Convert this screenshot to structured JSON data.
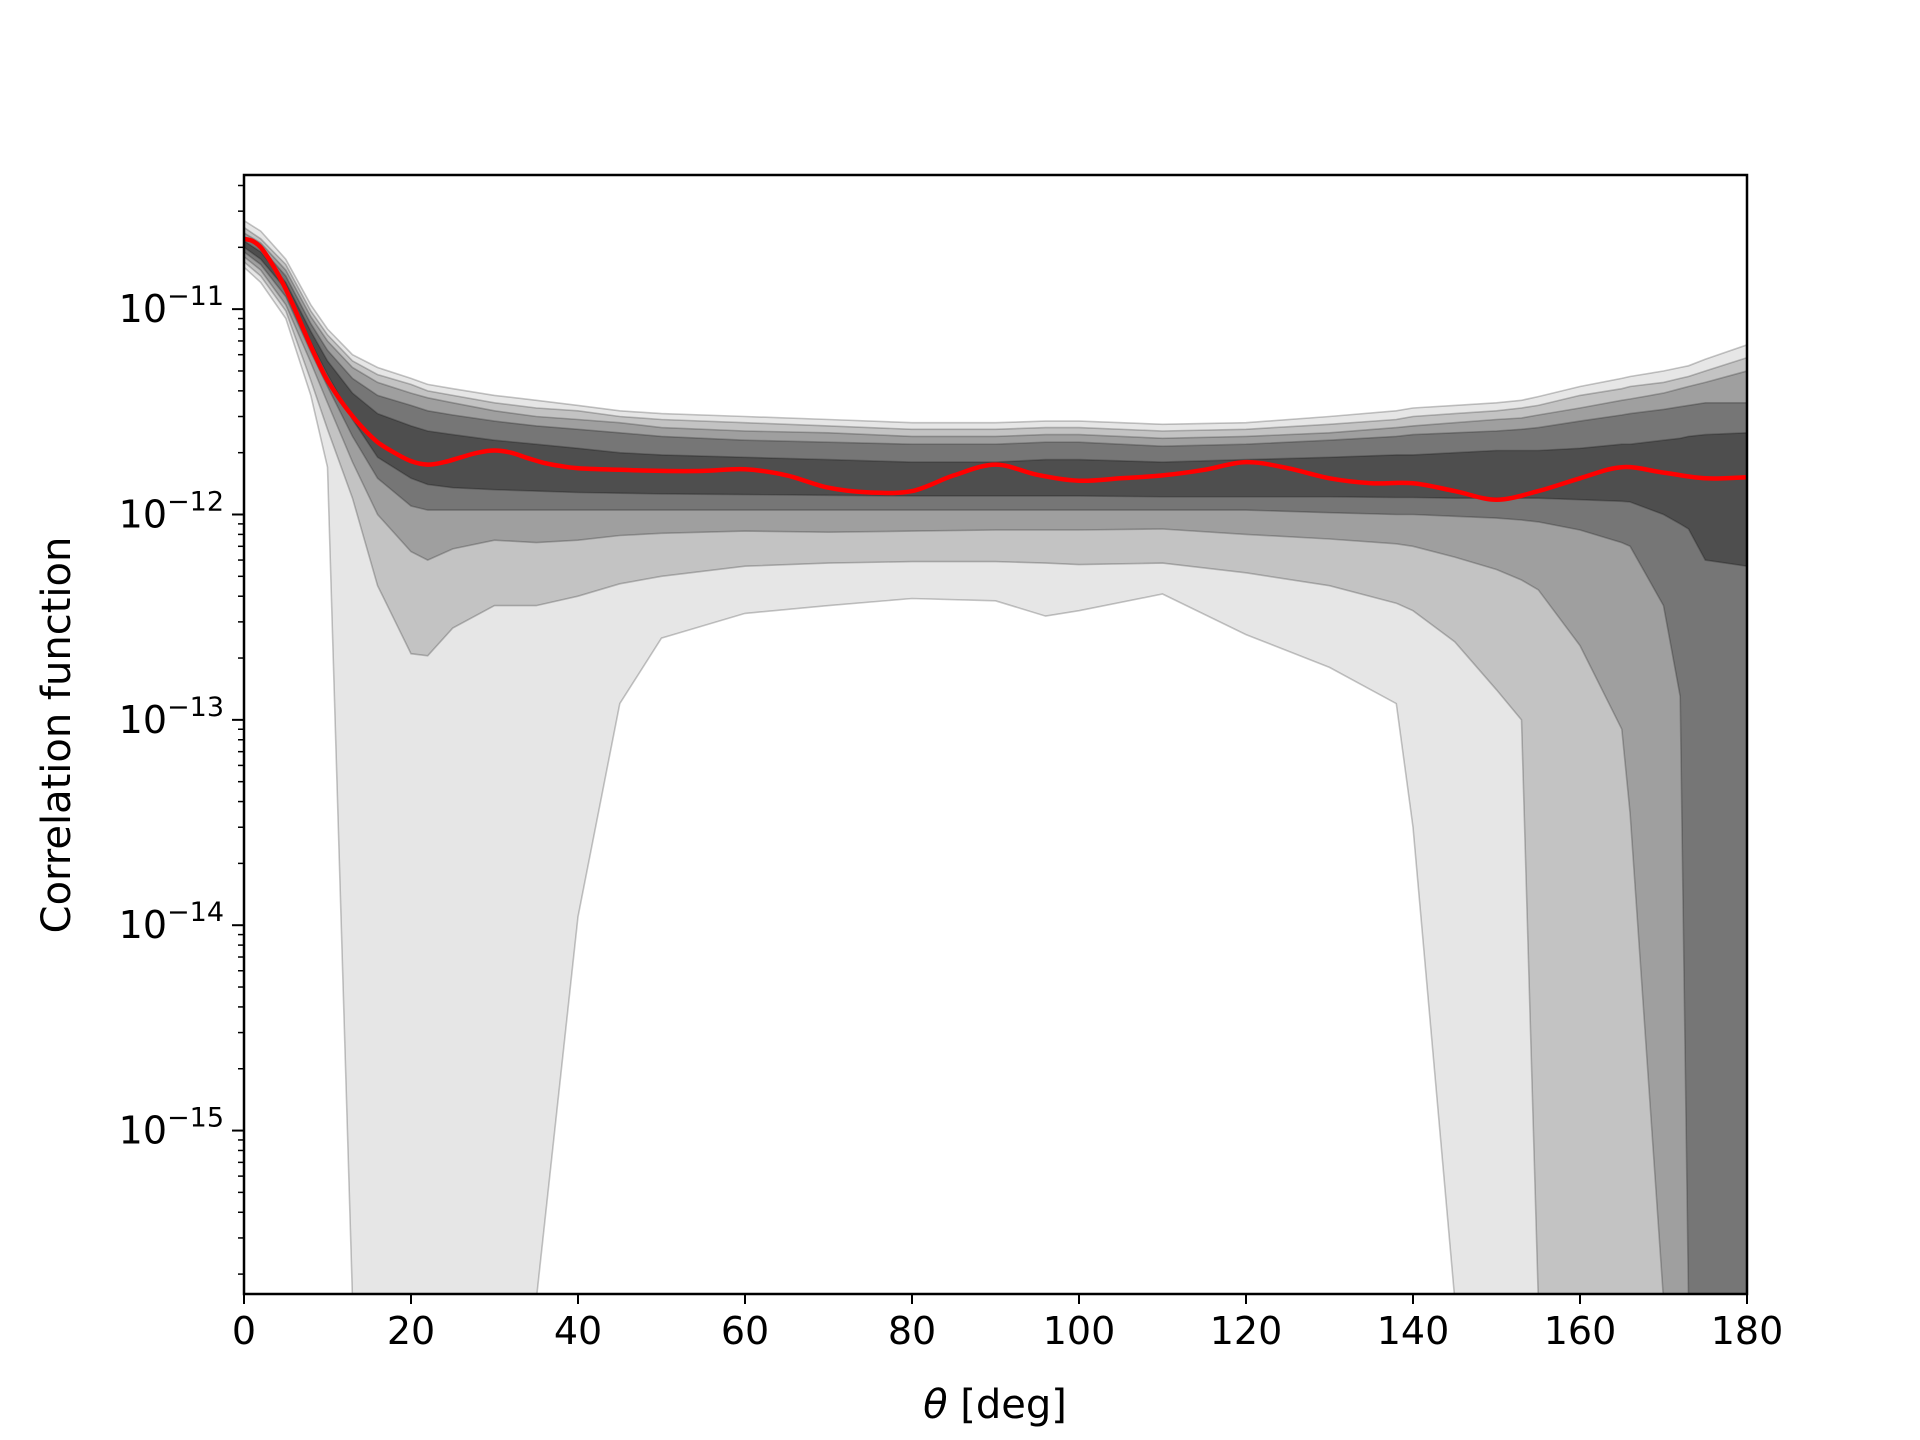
{
  "chart_data": {
    "type": "area",
    "xlabel_symbol": "θ",
    "xlabel_unit": " [deg]",
    "ylabel": "Correlation function",
    "xlim": [
      0,
      180
    ],
    "ylim": [
      1.6e-16,
      4.5e-11
    ],
    "yscale": "log",
    "xticks": [
      "0",
      "20",
      "40",
      "60",
      "80",
      "100",
      "120",
      "140",
      "160",
      "180"
    ],
    "yticks": [
      {
        "base": "10",
        "exp": "−11",
        "value": 1e-11
      },
      {
        "base": "10",
        "exp": "−12",
        "value": 1e-12
      },
      {
        "base": "10",
        "exp": "−13",
        "value": 1e-13
      },
      {
        "base": "10",
        "exp": "−14",
        "value": 1e-14
      },
      {
        "base": "10",
        "exp": "−15",
        "value": 1e-15
      }
    ],
    "band_colors": [
      "#e6e6e6",
      "#c3c3c3",
      "#9f9f9f",
      "#767676",
      "#4e4e4e"
    ],
    "line_color": "#ff0000",
    "x": [
      0,
      2,
      5,
      8,
      10,
      13,
      16,
      20,
      22,
      25,
      30,
      35,
      40,
      45,
      50,
      60,
      70,
      80,
      90,
      96,
      100,
      110,
      120,
      130,
      138,
      140,
      145,
      150,
      153,
      155,
      160,
      165,
      166,
      170,
      172,
      173,
      175,
      180
    ],
    "bands": [
      {
        "upper": [
          2.7e-11,
          2.4e-11,
          1.75e-11,
          1.05e-11,
          8e-12,
          6e-12,
          5.2e-12,
          4.6e-12,
          4.3e-12,
          4.1e-12,
          3.8e-12,
          3.6e-12,
          3.4e-12,
          3.2e-12,
          3.1e-12,
          3e-12,
          2.9e-12,
          2.8e-12,
          2.8e-12,
          2.85e-12,
          2.85e-12,
          2.75e-12,
          2.8e-12,
          3e-12,
          3.2e-12,
          3.3e-12,
          3.4e-12,
          3.5e-12,
          3.6e-12,
          3.75e-12,
          4.2e-12,
          4.6e-12,
          4.7e-12,
          5e-12,
          5.2e-12,
          5.3e-12,
          5.7e-12,
          6.7e-12
        ],
        "lower": [
          1.6e-11,
          1.35e-11,
          9e-12,
          3.8e-12,
          1.7e-12,
          1.5e-16,
          1.5e-16,
          1.5e-16,
          1.5e-16,
          1.5e-16,
          1.5e-16,
          1.5e-16,
          1.1e-14,
          1.2e-13,
          2.5e-13,
          3.3e-13,
          3.6e-13,
          3.9e-13,
          3.8e-13,
          3.2e-13,
          3.4e-13,
          4.1e-13,
          2.6e-13,
          1.8e-13,
          1.2e-13,
          3e-14,
          1.5e-16,
          1.5e-16,
          1.5e-16,
          1.5e-16,
          1.5e-16,
          1.5e-16,
          1.5e-16,
          1.5e-16,
          1.5e-16,
          1.5e-16,
          1.5e-16,
          1.5e-16
        ]
      },
      {
        "upper": [
          2.5e-11,
          2.2e-11,
          1.65e-11,
          9.8e-12,
          7.5e-12,
          5.6e-12,
          4.8e-12,
          4.3e-12,
          4e-12,
          3.8e-12,
          3.5e-12,
          3.3e-12,
          3.2e-12,
          3e-12,
          2.9e-12,
          2.8e-12,
          2.7e-12,
          2.6e-12,
          2.6e-12,
          2.65e-12,
          2.65e-12,
          2.55e-12,
          2.6e-12,
          2.75e-12,
          2.9e-12,
          3e-12,
          3.1e-12,
          3.2e-12,
          3.3e-12,
          3.4e-12,
          3.8e-12,
          4.1e-12,
          4.2e-12,
          4.4e-12,
          4.6e-12,
          4.7e-12,
          5e-12,
          5.8e-12
        ],
        "lower": [
          1.7e-11,
          1.45e-11,
          9.8e-12,
          4.5e-12,
          2.6e-12,
          1.2e-12,
          4.5e-13,
          2.1e-13,
          2.05e-13,
          2.8e-13,
          3.6e-13,
          3.6e-13,
          4e-13,
          4.6e-13,
          5e-13,
          5.6e-13,
          5.8e-13,
          5.9e-13,
          5.9e-13,
          5.8e-13,
          5.7e-13,
          5.8e-13,
          5.2e-13,
          4.5e-13,
          3.7e-13,
          3.4e-13,
          2.4e-13,
          1.4e-13,
          1e-13,
          1.5e-16,
          1.5e-16,
          1.5e-16,
          1.5e-16,
          1.5e-16,
          1.5e-16,
          1.5e-16,
          1.5e-16,
          1.5e-16
        ]
      },
      {
        "upper": [
          2.35e-11,
          2.1e-11,
          1.55e-11,
          9.2e-12,
          7e-12,
          5.2e-12,
          4.4e-12,
          3.9e-12,
          3.7e-12,
          3.5e-12,
          3.2e-12,
          3e-12,
          2.9e-12,
          2.8e-12,
          2.65e-12,
          2.55e-12,
          2.5e-12,
          2.4e-12,
          2.4e-12,
          2.45e-12,
          2.45e-12,
          2.35e-12,
          2.4e-12,
          2.5e-12,
          2.65e-12,
          2.7e-12,
          2.8e-12,
          2.9e-12,
          2.95e-12,
          3.05e-12,
          3.3e-12,
          3.6e-12,
          3.65e-12,
          3.9e-12,
          4.1e-12,
          4.2e-12,
          4.4e-12,
          5e-12
        ],
        "lower": [
          1.8e-11,
          1.55e-11,
          1.05e-11,
          5.5e-12,
          3.5e-12,
          1.8e-12,
          1e-12,
          6.6e-13,
          6e-13,
          6.8e-13,
          7.5e-13,
          7.3e-13,
          7.5e-13,
          7.9e-13,
          8.1e-13,
          8.3e-13,
          8.2e-13,
          8.3e-13,
          8.4e-13,
          8.4e-13,
          8.4e-13,
          8.5e-13,
          8e-13,
          7.6e-13,
          7.2e-13,
          7e-13,
          6.2e-13,
          5.4e-13,
          4.8e-13,
          4.3e-13,
          2.3e-13,
          9e-14,
          3.5e-14,
          1.5e-16,
          1.5e-16,
          1.5e-16,
          1.5e-16,
          1.5e-16
        ]
      },
      {
        "upper": [
          2.25e-11,
          2e-11,
          1.45e-11,
          8.5e-12,
          6.3e-12,
          4.6e-12,
          3.8e-12,
          3.4e-12,
          3.2e-12,
          3.05e-12,
          2.85e-12,
          2.7e-12,
          2.6e-12,
          2.5e-12,
          2.4e-12,
          2.3e-12,
          2.25e-12,
          2.2e-12,
          2.2e-12,
          2.25e-12,
          2.25e-12,
          2.15e-12,
          2.2e-12,
          2.3e-12,
          2.4e-12,
          2.45e-12,
          2.5e-12,
          2.55e-12,
          2.6e-12,
          2.65e-12,
          2.85e-12,
          3.05e-12,
          3.1e-12,
          3.25e-12,
          3.35e-12,
          3.4e-12,
          3.5e-12,
          3.5e-12
        ],
        "lower": [
          1.9e-11,
          1.65e-11,
          1.15e-11,
          6.2e-12,
          4.2e-12,
          2.4e-12,
          1.5e-12,
          1.1e-12,
          1.05e-12,
          1.05e-12,
          1.05e-12,
          1.05e-12,
          1.05e-12,
          1.05e-12,
          1.05e-12,
          1.05e-12,
          1.05e-12,
          1.05e-12,
          1.05e-12,
          1.05e-12,
          1.05e-12,
          1.05e-12,
          1.05e-12,
          1.02e-12,
          1e-12,
          1e-12,
          9.8e-13,
          9.6e-13,
          9.4e-13,
          9.2e-13,
          8.4e-13,
          7.3e-13,
          7e-13,
          3.6e-13,
          1.3e-13,
          1.5e-16,
          1.5e-16,
          1.5e-16
        ]
      },
      {
        "upper": [
          2.15e-11,
          1.9e-11,
          1.35e-11,
          7.8e-12,
          5.6e-12,
          3.9e-12,
          3.1e-12,
          2.7e-12,
          2.55e-12,
          2.45e-12,
          2.3e-12,
          2.2e-12,
          2.1e-12,
          2e-12,
          1.95e-12,
          1.9e-12,
          1.85e-12,
          1.8e-12,
          1.8e-12,
          1.85e-12,
          1.85e-12,
          1.8e-12,
          1.85e-12,
          1.9e-12,
          1.95e-12,
          1.95e-12,
          2e-12,
          2.05e-12,
          2.05e-12,
          2.05e-12,
          2.1e-12,
          2.2e-12,
          2.2e-12,
          2.3e-12,
          2.35e-12,
          2.4e-12,
          2.45e-12,
          2.5e-12
        ],
        "lower": [
          2e-11,
          1.75e-11,
          1.25e-11,
          6.9e-12,
          4.8e-12,
          2.9e-12,
          1.9e-12,
          1.5e-12,
          1.4e-12,
          1.35e-12,
          1.32e-12,
          1.3e-12,
          1.28e-12,
          1.27e-12,
          1.26e-12,
          1.25e-12,
          1.24e-12,
          1.23e-12,
          1.23e-12,
          1.23e-12,
          1.23e-12,
          1.22e-12,
          1.22e-12,
          1.22e-12,
          1.21e-12,
          1.21e-12,
          1.2e-12,
          1.2e-12,
          1.2e-12,
          1.2e-12,
          1.18e-12,
          1.16e-12,
          1.15e-12,
          1e-12,
          9e-13,
          8.5e-13,
          6e-13,
          5.6e-13
        ]
      }
    ],
    "series": [
      {
        "x": [
          0,
          1,
          2,
          3,
          4,
          5,
          6,
          7,
          8,
          9,
          10,
          12,
          14,
          16,
          18,
          20,
          22,
          24,
          26,
          28,
          30,
          32,
          34,
          36,
          38,
          40,
          45,
          50,
          55,
          60,
          65,
          70,
          75,
          80,
          85,
          90,
          95,
          100,
          105,
          110,
          115,
          120,
          125,
          130,
          135,
          140,
          145,
          150,
          155,
          160,
          165,
          170,
          175,
          180
        ],
        "values": [
          2.2e-11,
          2.15e-11,
          2e-11,
          1.75e-11,
          1.5e-11,
          1.25e-11,
          1.02e-11,
          8.2e-12,
          6.6e-12,
          5.4e-12,
          4.5e-12,
          3.4e-12,
          2.7e-12,
          2.25e-12,
          2e-12,
          1.82e-12,
          1.75e-12,
          1.8e-12,
          1.9e-12,
          2e-12,
          2.05e-12,
          2e-12,
          1.88e-12,
          1.78e-12,
          1.72e-12,
          1.68e-12,
          1.65e-12,
          1.63e-12,
          1.63e-12,
          1.66e-12,
          1.55e-12,
          1.35e-12,
          1.28e-12,
          1.3e-12,
          1.55e-12,
          1.75e-12,
          1.56e-12,
          1.46e-12,
          1.5e-12,
          1.55e-12,
          1.65e-12,
          1.8e-12,
          1.68e-12,
          1.5e-12,
          1.42e-12,
          1.42e-12,
          1.3e-12,
          1.18e-12,
          1.3e-12,
          1.5e-12,
          1.7e-12,
          1.6e-12,
          1.5e-12,
          1.52e-12
        ]
      }
    ]
  }
}
